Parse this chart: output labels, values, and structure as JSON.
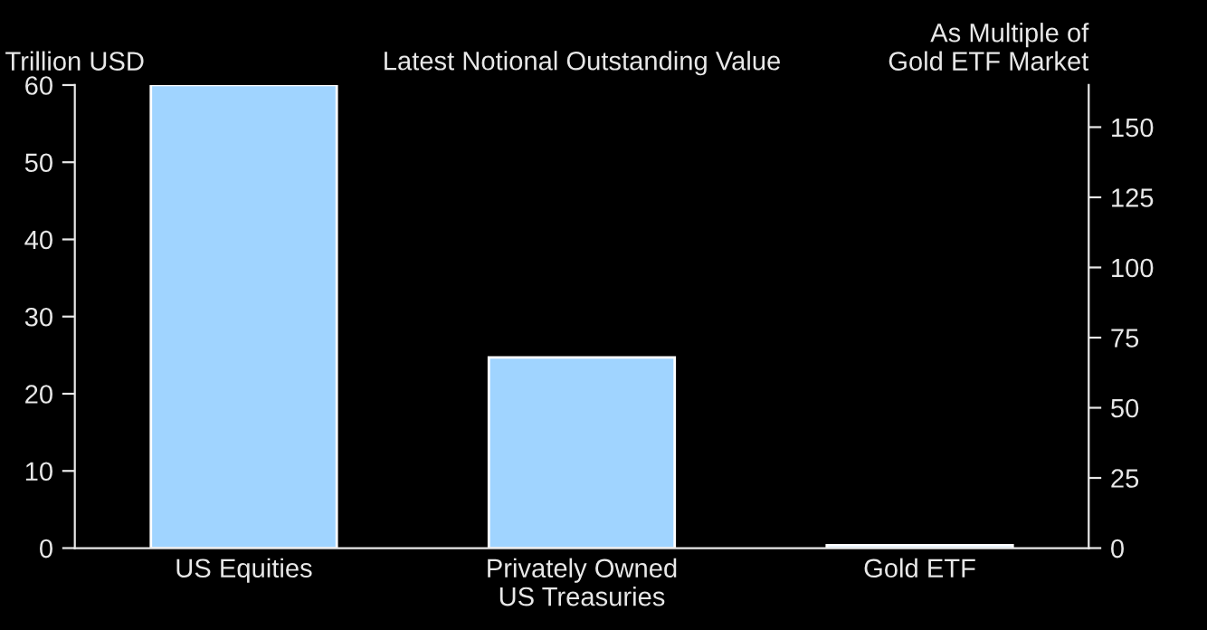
{
  "chart_data": {
    "type": "bar",
    "title": "Latest Notional Outstanding Value",
    "ylabel": "Trillion USD",
    "y2label": "As Multiple of\nGold ETF Market",
    "categories": [
      "US Equities",
      "Privately Owned\nUS Treasuries",
      "Gold ETF"
    ],
    "series": [
      {
        "color": "#a0d4ff",
        "values": [
          60,
          24.7,
          0.36
        ]
      }
    ],
    "ylim": [
      0,
      60
    ],
    "yticks": [
      0,
      10,
      20,
      30,
      40,
      50,
      60
    ],
    "y2lim": [
      0,
      165
    ],
    "y2ticks": [
      0,
      25,
      50,
      75,
      100,
      125,
      150
    ],
    "grid": false,
    "legend": false
  }
}
